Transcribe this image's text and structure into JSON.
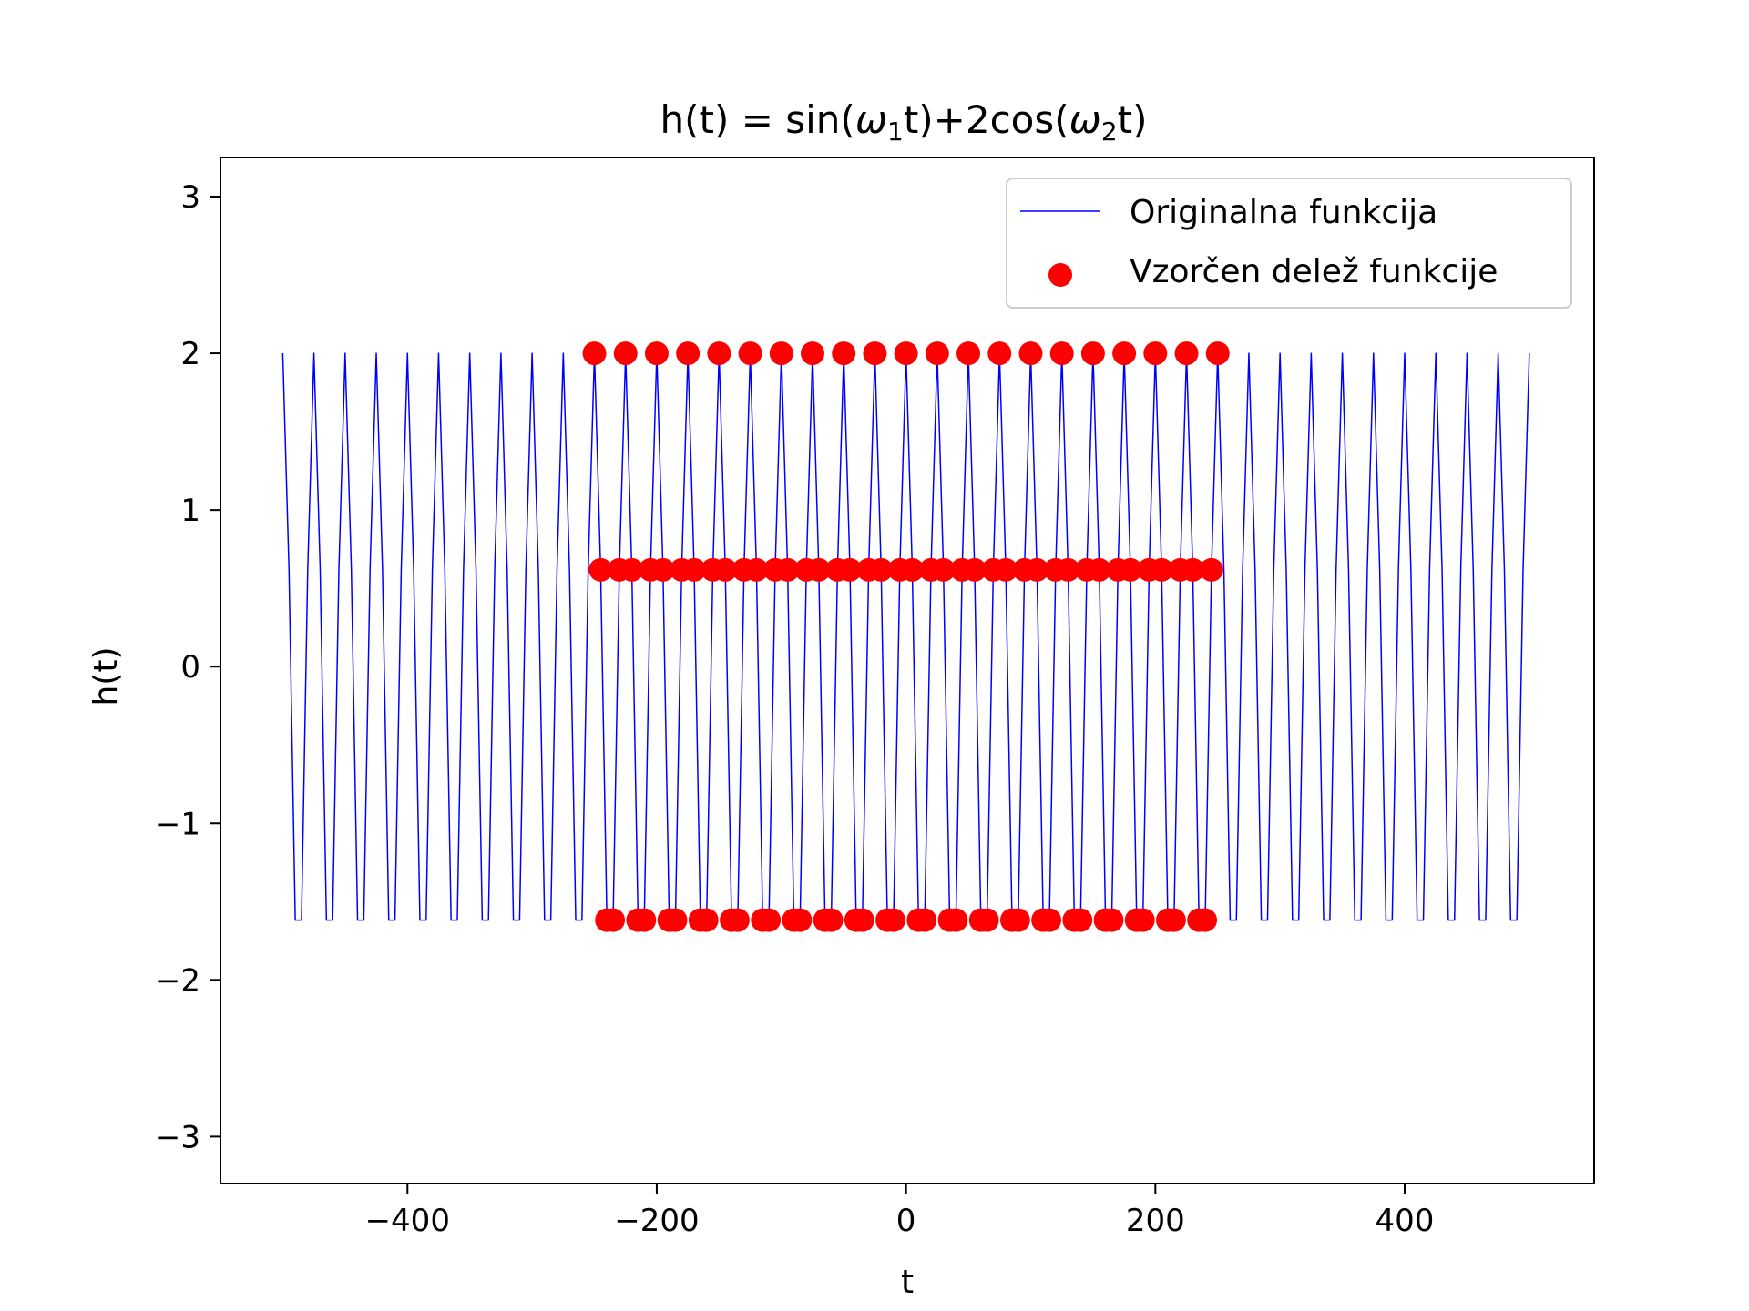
{
  "chart_data": {
    "type": "line",
    "title": {
      "prefix": "h(t) = sin(",
      "omega_1": "ω",
      "sub_1": "1",
      "middle": "t)+2cos(",
      "omega_2": "ω",
      "sub_2": "2",
      "suffix": "t)"
    },
    "xlabel": "t",
    "ylabel": "h(t)",
    "xlim": [
      -550,
      552
    ],
    "ylim": [
      -3.3,
      3.25
    ],
    "xticks": [
      -400,
      -200,
      0,
      200,
      400
    ],
    "yticks": [
      -3,
      -2,
      -1,
      0,
      1,
      2,
      3
    ],
    "xtick_labels": [
      "−400",
      "−200",
      "0",
      "200",
      "400"
    ],
    "ytick_labels": [
      "−3",
      "−2",
      "−1",
      "0",
      "1",
      "2",
      "3"
    ],
    "grid": false,
    "legend_position": "top-right",
    "series": [
      {
        "name": "Originalna funkcija",
        "kind": "line",
        "color": "#0000ff",
        "function": {
          "omega_1": 0.6283185307,
          "omega_2": 0.2513274123,
          "amp_1": 1,
          "amp_2": 2
        },
        "x_range": [
          -500,
          500
        ],
        "x_step": 5
      },
      {
        "name": "Vzorčen delež funkcije",
        "kind": "scatter",
        "color": "#ff0000",
        "function": {
          "omega_1": 0.6283185307,
          "omega_2": 0.2513274123,
          "amp_1": 1,
          "amp_2": 2
        },
        "x_range": [
          -250,
          250
        ],
        "x_step": 5
      }
    ]
  }
}
